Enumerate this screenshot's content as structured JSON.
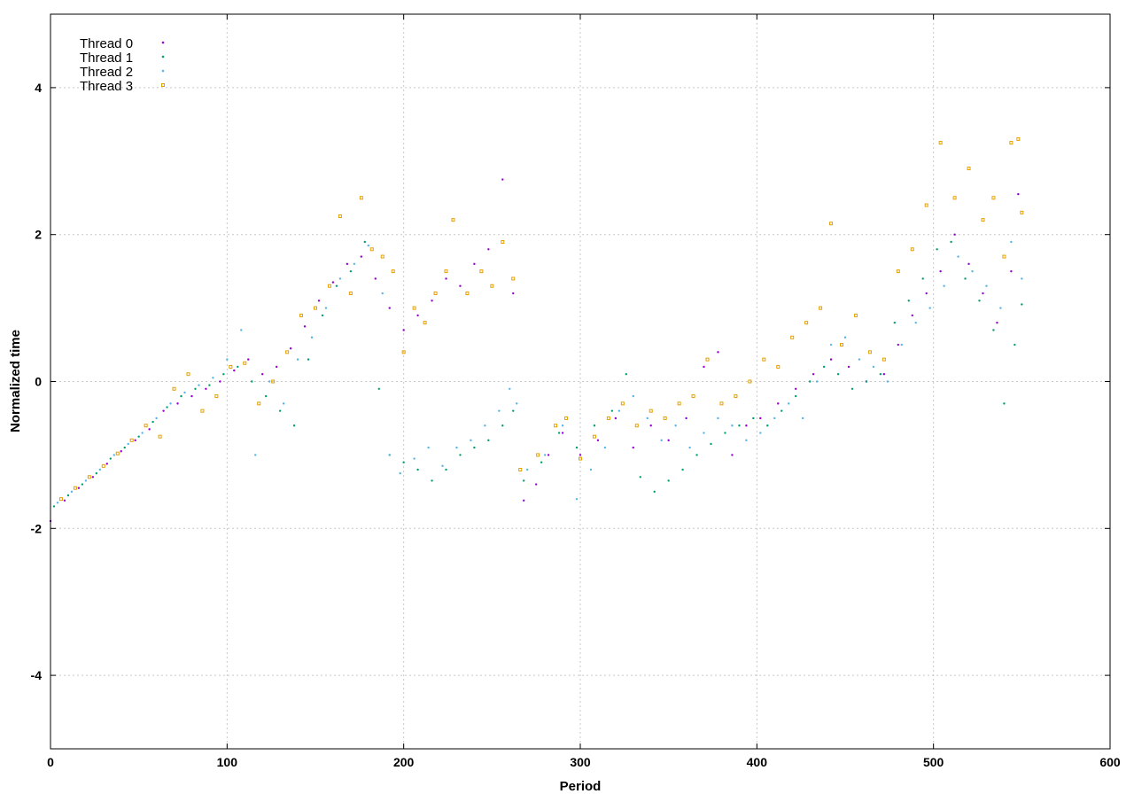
{
  "chart_data": {
    "type": "scatter",
    "title": "",
    "xlabel": "Period",
    "ylabel": "Normalized time",
    "xlim": [
      0,
      600
    ],
    "ylim": [
      -5,
      5
    ],
    "xticks": [
      "0",
      "100",
      "200",
      "300",
      "400",
      "500",
      "600"
    ],
    "yticks": [
      "4",
      "2",
      "0",
      "-2",
      "-4"
    ],
    "grid": true,
    "legend_position": "top-left",
    "series": [
      {
        "name": "Thread 0",
        "color": "#9400d3",
        "marker": "dot",
        "points": [
          [
            0,
            -1.9
          ],
          [
            8,
            -1.62
          ],
          [
            16,
            -1.45
          ],
          [
            24,
            -1.3
          ],
          [
            32,
            -1.12
          ],
          [
            40,
            -0.95
          ],
          [
            48,
            -0.8
          ],
          [
            56,
            -0.65
          ],
          [
            64,
            -0.4
          ],
          [
            72,
            -0.3
          ],
          [
            80,
            -0.2
          ],
          [
            88,
            -0.1
          ],
          [
            96,
            0.0
          ],
          [
            104,
            0.15
          ],
          [
            112,
            0.3
          ],
          [
            120,
            0.1
          ],
          [
            128,
            0.2
          ],
          [
            136,
            0.45
          ],
          [
            144,
            0.75
          ],
          [
            152,
            1.1
          ],
          [
            160,
            1.35
          ],
          [
            168,
            1.6
          ],
          [
            176,
            1.7
          ],
          [
            184,
            1.4
          ],
          [
            192,
            1.0
          ],
          [
            200,
            0.7
          ],
          [
            208,
            0.9
          ],
          [
            216,
            1.1
          ],
          [
            224,
            1.4
          ],
          [
            232,
            1.3
          ],
          [
            240,
            1.6
          ],
          [
            248,
            1.8
          ],
          [
            256,
            2.75
          ],
          [
            262,
            1.2
          ],
          [
            268,
            -1.62
          ],
          [
            275,
            -1.4
          ],
          [
            282,
            -1.0
          ],
          [
            290,
            -0.7
          ],
          [
            300,
            -1.0
          ],
          [
            310,
            -0.8
          ],
          [
            320,
            -0.5
          ],
          [
            330,
            -0.9
          ],
          [
            340,
            -0.6
          ],
          [
            350,
            -0.8
          ],
          [
            360,
            -0.5
          ],
          [
            370,
            0.2
          ],
          [
            378,
            0.4
          ],
          [
            386,
            -1.0
          ],
          [
            394,
            -0.6
          ],
          [
            402,
            -0.5
          ],
          [
            412,
            -0.3
          ],
          [
            422,
            -0.1
          ],
          [
            432,
            0.1
          ],
          [
            442,
            0.3
          ],
          [
            452,
            0.2
          ],
          [
            462,
            0.0
          ],
          [
            472,
            0.1
          ],
          [
            480,
            0.5
          ],
          [
            488,
            0.9
          ],
          [
            496,
            1.2
          ],
          [
            504,
            1.5
          ],
          [
            512,
            2.0
          ],
          [
            520,
            1.6
          ],
          [
            528,
            1.2
          ],
          [
            536,
            0.8
          ],
          [
            544,
            1.5
          ],
          [
            548,
            2.55
          ]
        ]
      },
      {
        "name": "Thread 1",
        "color": "#009e73",
        "marker": "dot",
        "points": [
          [
            2,
            -1.7
          ],
          [
            10,
            -1.55
          ],
          [
            18,
            -1.4
          ],
          [
            26,
            -1.25
          ],
          [
            34,
            -1.05
          ],
          [
            42,
            -0.9
          ],
          [
            50,
            -0.75
          ],
          [
            58,
            -0.55
          ],
          [
            66,
            -0.35
          ],
          [
            74,
            -0.2
          ],
          [
            82,
            -0.1
          ],
          [
            90,
            -0.05
          ],
          [
            98,
            0.1
          ],
          [
            106,
            0.2
          ],
          [
            114,
            0.0
          ],
          [
            122,
            -0.2
          ],
          [
            130,
            -0.4
          ],
          [
            138,
            -0.6
          ],
          [
            146,
            0.3
          ],
          [
            154,
            0.9
          ],
          [
            162,
            1.3
          ],
          [
            170,
            1.5
          ],
          [
            178,
            1.9
          ],
          [
            186,
            -0.1
          ],
          [
            192,
            -1.0
          ],
          [
            200,
            -1.1
          ],
          [
            208,
            -1.2
          ],
          [
            216,
            -1.35
          ],
          [
            224,
            -1.2
          ],
          [
            232,
            -1.0
          ],
          [
            240,
            -0.9
          ],
          [
            248,
            -0.8
          ],
          [
            256,
            -0.6
          ],
          [
            262,
            -0.4
          ],
          [
            268,
            -1.35
          ],
          [
            278,
            -1.1
          ],
          [
            288,
            -0.7
          ],
          [
            298,
            -0.9
          ],
          [
            308,
            -0.6
          ],
          [
            318,
            -0.4
          ],
          [
            326,
            0.1
          ],
          [
            334,
            -1.3
          ],
          [
            342,
            -1.5
          ],
          [
            350,
            -1.35
          ],
          [
            358,
            -1.2
          ],
          [
            366,
            -1.0
          ],
          [
            374,
            -0.85
          ],
          [
            382,
            -0.7
          ],
          [
            390,
            -0.6
          ],
          [
            398,
            -0.5
          ],
          [
            406,
            -0.6
          ],
          [
            414,
            -0.4
          ],
          [
            422,
            -0.2
          ],
          [
            430,
            0.0
          ],
          [
            438,
            0.2
          ],
          [
            446,
            0.1
          ],
          [
            454,
            -0.1
          ],
          [
            462,
            0.0
          ],
          [
            470,
            0.1
          ],
          [
            478,
            0.8
          ],
          [
            486,
            1.1
          ],
          [
            494,
            1.4
          ],
          [
            502,
            1.8
          ],
          [
            510,
            1.9
          ],
          [
            518,
            1.4
          ],
          [
            526,
            1.1
          ],
          [
            534,
            0.7
          ],
          [
            540,
            -0.3
          ],
          [
            546,
            0.5
          ],
          [
            550,
            1.05
          ]
        ]
      },
      {
        "name": "Thread 2",
        "color": "#56b4e9",
        "marker": "dot",
        "points": [
          [
            4,
            -1.65
          ],
          [
            12,
            -1.5
          ],
          [
            20,
            -1.35
          ],
          [
            28,
            -1.2
          ],
          [
            36,
            -1.0
          ],
          [
            44,
            -0.85
          ],
          [
            52,
            -0.7
          ],
          [
            60,
            -0.5
          ],
          [
            68,
            -0.3
          ],
          [
            76,
            -0.15
          ],
          [
            84,
            -0.05
          ],
          [
            92,
            0.05
          ],
          [
            100,
            0.3
          ],
          [
            108,
            0.7
          ],
          [
            116,
            -1.0
          ],
          [
            124,
            0.0
          ],
          [
            132,
            -0.3
          ],
          [
            140,
            0.3
          ],
          [
            148,
            0.6
          ],
          [
            156,
            1.0
          ],
          [
            164,
            1.4
          ],
          [
            172,
            1.6
          ],
          [
            180,
            1.85
          ],
          [
            188,
            1.2
          ],
          [
            192,
            -1.0
          ],
          [
            198,
            -1.25
          ],
          [
            206,
            -1.05
          ],
          [
            214,
            -0.9
          ],
          [
            222,
            -1.15
          ],
          [
            230,
            -0.9
          ],
          [
            238,
            -0.8
          ],
          [
            246,
            -0.6
          ],
          [
            254,
            -0.4
          ],
          [
            260,
            -0.1
          ],
          [
            264,
            -0.3
          ],
          [
            270,
            -1.2
          ],
          [
            280,
            -1.0
          ],
          [
            290,
            -0.6
          ],
          [
            298,
            -1.6
          ],
          [
            306,
            -1.2
          ],
          [
            314,
            -0.9
          ],
          [
            322,
            -0.4
          ],
          [
            330,
            -0.2
          ],
          [
            338,
            -0.5
          ],
          [
            346,
            -0.8
          ],
          [
            354,
            -0.6
          ],
          [
            362,
            -0.9
          ],
          [
            370,
            -0.7
          ],
          [
            378,
            -0.5
          ],
          [
            386,
            -0.6
          ],
          [
            394,
            -0.8
          ],
          [
            402,
            -0.7
          ],
          [
            410,
            -0.5
          ],
          [
            418,
            -0.3
          ],
          [
            426,
            -0.5
          ],
          [
            434,
            0.0
          ],
          [
            442,
            0.5
          ],
          [
            450,
            0.6
          ],
          [
            458,
            0.3
          ],
          [
            466,
            0.2
          ],
          [
            474,
            0.0
          ],
          [
            482,
            0.5
          ],
          [
            490,
            0.8
          ],
          [
            498,
            1.0
          ],
          [
            506,
            1.3
          ],
          [
            514,
            1.7
          ],
          [
            522,
            1.5
          ],
          [
            530,
            1.3
          ],
          [
            538,
            1.0
          ],
          [
            544,
            1.9
          ],
          [
            550,
            1.4
          ]
        ]
      },
      {
        "name": "Thread 3",
        "color": "#e69f00",
        "marker": "square",
        "points": [
          [
            6,
            -1.6
          ],
          [
            14,
            -1.45
          ],
          [
            22,
            -1.3
          ],
          [
            30,
            -1.15
          ],
          [
            38,
            -0.98
          ],
          [
            46,
            -0.8
          ],
          [
            54,
            -0.6
          ],
          [
            62,
            -0.75
          ],
          [
            70,
            -0.1
          ],
          [
            78,
            0.1
          ],
          [
            86,
            -0.4
          ],
          [
            94,
            -0.2
          ],
          [
            102,
            0.2
          ],
          [
            110,
            0.25
          ],
          [
            118,
            -0.3
          ],
          [
            126,
            0.0
          ],
          [
            134,
            0.4
          ],
          [
            142,
            0.9
          ],
          [
            150,
            1.0
          ],
          [
            158,
            1.3
          ],
          [
            164,
            2.25
          ],
          [
            170,
            1.2
          ],
          [
            176,
            2.5
          ],
          [
            182,
            1.8
          ],
          [
            188,
            1.7
          ],
          [
            194,
            1.5
          ],
          [
            200,
            0.4
          ],
          [
            206,
            1.0
          ],
          [
            212,
            0.8
          ],
          [
            218,
            1.2
          ],
          [
            224,
            1.5
          ],
          [
            228,
            2.2
          ],
          [
            236,
            1.2
          ],
          [
            244,
            1.5
          ],
          [
            250,
            1.3
          ],
          [
            256,
            1.9
          ],
          [
            262,
            1.4
          ],
          [
            266,
            -1.2
          ],
          [
            276,
            -1.0
          ],
          [
            286,
            -0.6
          ],
          [
            292,
            -0.5
          ],
          [
            300,
            -1.05
          ],
          [
            308,
            -0.75
          ],
          [
            316,
            -0.5
          ],
          [
            324,
            -0.3
          ],
          [
            332,
            -0.6
          ],
          [
            340,
            -0.4
          ],
          [
            348,
            -0.5
          ],
          [
            356,
            -0.3
          ],
          [
            364,
            -0.2
          ],
          [
            372,
            0.3
          ],
          [
            380,
            -0.3
          ],
          [
            388,
            -0.2
          ],
          [
            396,
            0.0
          ],
          [
            404,
            0.3
          ],
          [
            412,
            0.2
          ],
          [
            420,
            0.6
          ],
          [
            428,
            0.8
          ],
          [
            436,
            1.0
          ],
          [
            442,
            2.15
          ],
          [
            448,
            0.5
          ],
          [
            456,
            0.9
          ],
          [
            464,
            0.4
          ],
          [
            472,
            0.3
          ],
          [
            480,
            1.5
          ],
          [
            488,
            1.8
          ],
          [
            496,
            2.4
          ],
          [
            504,
            3.25
          ],
          [
            512,
            2.5
          ],
          [
            520,
            2.9
          ],
          [
            528,
            2.2
          ],
          [
            534,
            2.5
          ],
          [
            540,
            1.7
          ],
          [
            544,
            3.25
          ],
          [
            548,
            3.3
          ],
          [
            550,
            2.3
          ]
        ]
      }
    ]
  }
}
